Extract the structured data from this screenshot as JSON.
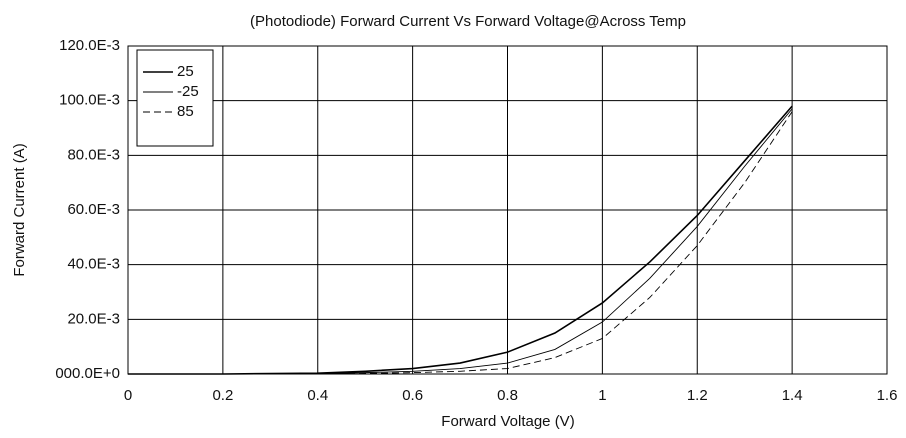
{
  "chart_data": {
    "type": "line",
    "title": "(Photodiode) Forward Current Vs Forward Voltage@Across Temp",
    "xlabel": "Forward Voltage (V)",
    "ylabel": "Forward Current (A)",
    "x": [
      0,
      0.2,
      0.4,
      0.5,
      0.6,
      0.7,
      0.8,
      0.9,
      1.0,
      1.1,
      1.2,
      1.3,
      1.4
    ],
    "series": [
      {
        "name": "25",
        "color": "#000000",
        "width": 1.6,
        "style": "solid",
        "values": [
          0,
          0,
          0.0003,
          0.001,
          0.002,
          0.004,
          0.008,
          0.015,
          0.026,
          0.041,
          0.058,
          0.078,
          0.098
        ]
      },
      {
        "name": "-25",
        "color": "#000000",
        "width": 0.9,
        "style": "solid",
        "values": [
          0,
          0,
          0.0001,
          0.0005,
          0.001,
          0.002,
          0.004,
          0.009,
          0.019,
          0.035,
          0.054,
          0.076,
          0.097
        ]
      },
      {
        "name": "85",
        "color": "#000000",
        "width": 0.9,
        "style": "dashed",
        "values": [
          0,
          0,
          0,
          0.0002,
          0.0005,
          0.001,
          0.002,
          0.006,
          0.013,
          0.028,
          0.047,
          0.07,
          0.096
        ]
      }
    ],
    "xlim": [
      0,
      1.6
    ],
    "xticks": [
      0,
      0.2,
      0.4,
      0.6,
      0.8,
      1,
      1.2,
      1.4,
      1.6
    ],
    "ylim": [
      0,
      0.12
    ],
    "yticks": [
      {
        "value": 0,
        "label": "000.0E+0"
      },
      {
        "value": 0.02,
        "label": "20.0E-3"
      },
      {
        "value": 0.04,
        "label": "40.0E-3"
      },
      {
        "value": 0.06,
        "label": "60.0E-3"
      },
      {
        "value": 0.08,
        "label": "80.0E-3"
      },
      {
        "value": 0.1,
        "label": "100.0E-3"
      },
      {
        "value": 0.12,
        "label": "120.0E-3"
      }
    ],
    "grid": true,
    "legend": "top-left"
  }
}
